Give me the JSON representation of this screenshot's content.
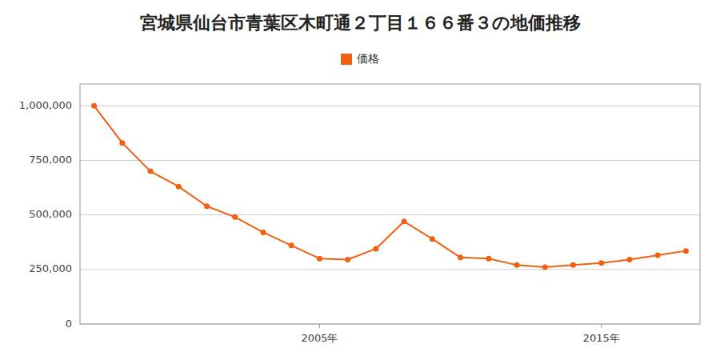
{
  "chart_data": {
    "type": "line",
    "title": "宮城県仙台市青葉区木町通２丁目１６６番３の地価推移",
    "x": [
      1997,
      1998,
      1999,
      2000,
      2001,
      2002,
      2003,
      2004,
      2005,
      2006,
      2007,
      2008,
      2009,
      2010,
      2011,
      2012,
      2013,
      2014,
      2015,
      2016,
      2017,
      2018
    ],
    "series": [
      {
        "name": "価格",
        "color": "#f06010",
        "marker": "circle",
        "values": [
          1000000,
          830000,
          700000,
          630000,
          540000,
          490000,
          420000,
          360000,
          300000,
          295000,
          345000,
          470000,
          390000,
          305000,
          300000,
          270000,
          260000,
          270000,
          280000,
          295000,
          315000,
          335000
        ]
      }
    ],
    "xlim": [
      1996.5,
      2018.5
    ],
    "xticks": [
      {
        "value": 2005,
        "label": "2005年"
      },
      {
        "value": 2015,
        "label": "2015年"
      }
    ],
    "ylim": [
      0,
      1100000
    ],
    "yticks": [
      0,
      {
        "value": 250000,
        "label": "250,000"
      },
      {
        "value": 500000,
        "label": "500,000"
      },
      {
        "value": 750000,
        "label": "750,000"
      },
      {
        "value": 1000000,
        "label": "1,000,000"
      }
    ],
    "grid": true,
    "legend": "top"
  }
}
